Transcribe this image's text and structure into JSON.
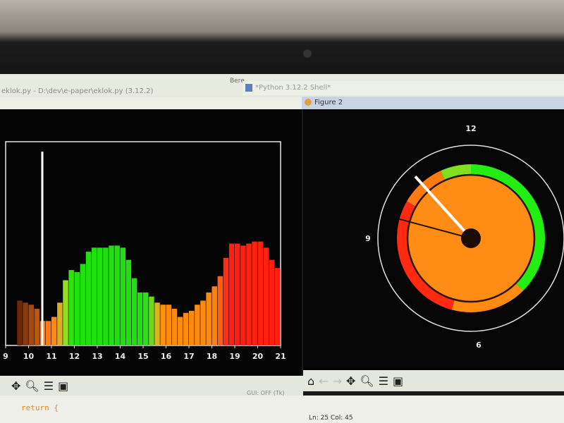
{
  "idle_window": {
    "title": "eklok.py - D:\\dev\\e-paper\\eklok.py (3.12.2)",
    "menu_fragment": "Bere"
  },
  "shell_window": {
    "title": "*Python 3.12.2 Shell*"
  },
  "figure_window": {
    "title": "Figure 2"
  },
  "toolbar_icons": [
    "home-icon",
    "back-icon",
    "forward-icon",
    "pan-icon",
    "zoom-icon",
    "configure-icon",
    "save-icon"
  ],
  "toolbar_glyphs": {
    "home": "⌂",
    "back": "←",
    "forward": "→",
    "pan": "✥",
    "zoom": "🔍",
    "configure": "☰",
    "save": "💾"
  },
  "editor": {
    "code_line": "return {",
    "gui_label": "GUI: OFF (Tk)",
    "status": "Ln: 25  Col: 45"
  },
  "chart_data": [
    {
      "type": "bar",
      "title": "",
      "xlabel": "",
      "ylabel": "",
      "xlim": [
        9,
        21
      ],
      "ylim": [
        0,
        1
      ],
      "x_ticks": [
        "9",
        "10",
        "11",
        "12",
        "13",
        "14",
        "15",
        "16",
        "17",
        "18",
        "19",
        "20",
        "21"
      ],
      "grid": false,
      "marker_line_x": 10.6,
      "marker_line_color": "#ffffff",
      "x": [
        9.5,
        9.75,
        10,
        10.25,
        10.5,
        10.75,
        11,
        11.25,
        11.5,
        11.75,
        12,
        12.25,
        12.5,
        12.75,
        13,
        13.25,
        13.5,
        13.75,
        14,
        14.25,
        14.5,
        14.75,
        15,
        15.25,
        15.5,
        15.75,
        16,
        16.25,
        16.5,
        16.75,
        17,
        17.25,
        17.5,
        17.75,
        18,
        18.25,
        18.5,
        18.75,
        19,
        19.25,
        19.5,
        19.75,
        20,
        20.25,
        20.5,
        20.75
      ],
      "values": [
        0.22,
        0.21,
        0.2,
        0.18,
        0.12,
        0.12,
        0.14,
        0.21,
        0.32,
        0.37,
        0.36,
        0.4,
        0.46,
        0.48,
        0.48,
        0.48,
        0.49,
        0.49,
        0.48,
        0.42,
        0.33,
        0.26,
        0.26,
        0.24,
        0.21,
        0.2,
        0.2,
        0.18,
        0.14,
        0.16,
        0.17,
        0.2,
        0.22,
        0.26,
        0.29,
        0.34,
        0.43,
        0.5,
        0.5,
        0.49,
        0.5,
        0.51,
        0.51,
        0.48,
        0.42,
        0.38
      ],
      "colors": [
        "#6a2a08",
        "#8a3a0a",
        "#a8480c",
        "#c0560e",
        "#ff7a10",
        "#ff7a10",
        "#ff8a12",
        "#d9b020",
        "#8ee020",
        "#30e010",
        "#20e010",
        "#20e010",
        "#20e010",
        "#20e010",
        "#20e010",
        "#20e010",
        "#20e010",
        "#20e010",
        "#20e010",
        "#20e010",
        "#20e010",
        "#20e010",
        "#30e010",
        "#70d818",
        "#e0b020",
        "#ff9010",
        "#ff8a10",
        "#ff8a10",
        "#ff8a10",
        "#ff8a10",
        "#ff8a10",
        "#ff8a10",
        "#ff8a10",
        "#ff8a10",
        "#ff8010",
        "#ff6010",
        "#ff3010",
        "#ff2010",
        "#ff2010",
        "#ff2010",
        "#ff2010",
        "#ff2010",
        "#ff2010",
        "#ff2010",
        "#ff2010",
        "#ff2010"
      ]
    },
    {
      "type": "polar",
      "title": "",
      "dial_labels": [
        "12",
        "9",
        "6"
      ],
      "ring_segments": [
        {
          "from_hour": 0,
          "to_hour": 4.5,
          "color": "#22ee11"
        },
        {
          "from_hour": 4.5,
          "to_hour": 6.5,
          "color": "#ff8c10"
        },
        {
          "from_hour": 6.5,
          "to_hour": 10,
          "color": "#ff2a10"
        },
        {
          "from_hour": 10,
          "to_hour": 11.2,
          "color": "#ff7a10"
        },
        {
          "from_hour": 11.2,
          "to_hour": 12,
          "color": "#80e020"
        }
      ],
      "inner_disk_color": "#ff8c14",
      "hand_hour": 10.6,
      "secondary_hand_hour": 9.5
    }
  ]
}
